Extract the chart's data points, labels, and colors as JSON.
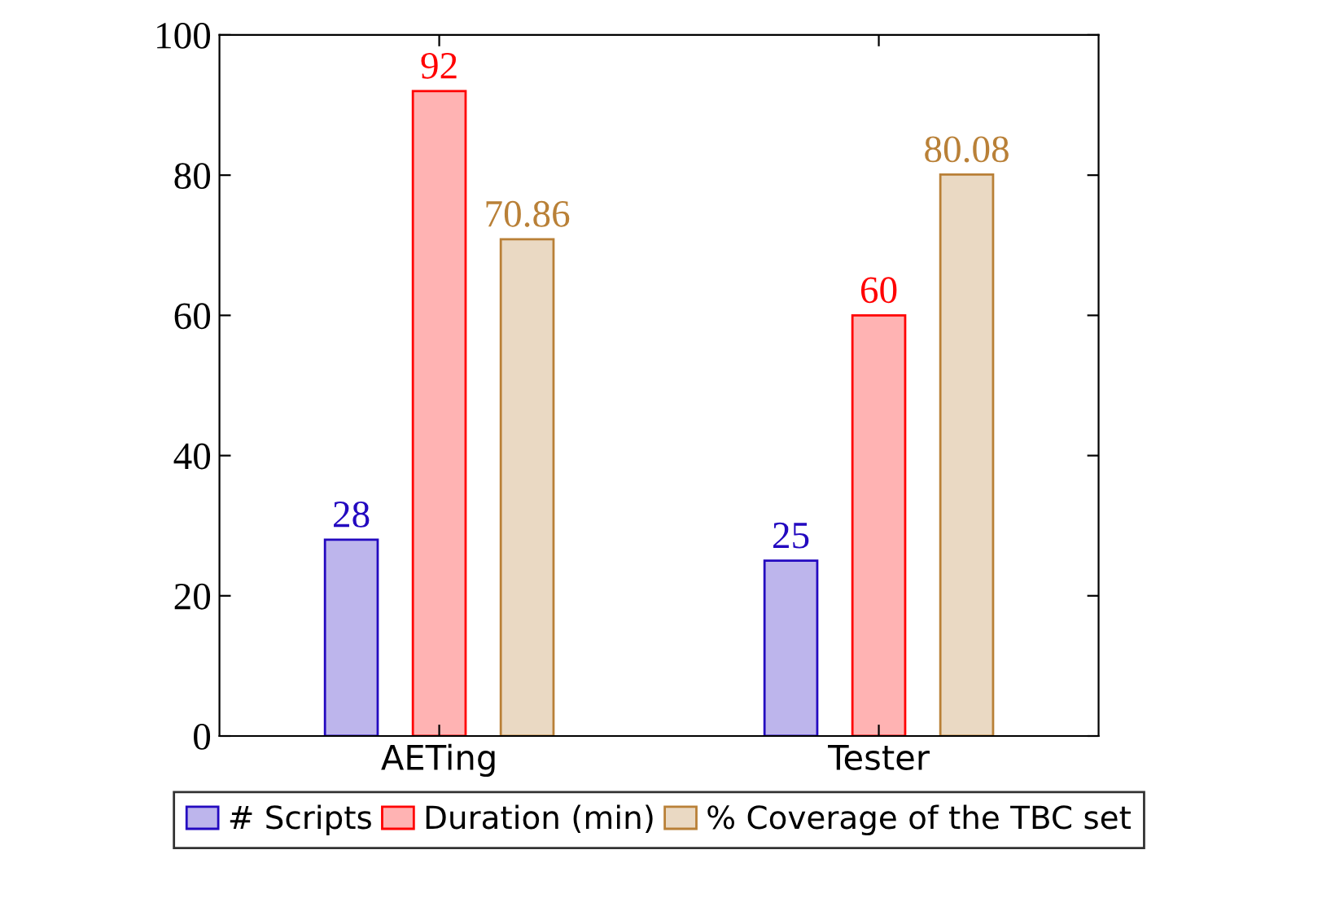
{
  "chart_data": {
    "type": "bar",
    "categories": [
      "AETing",
      "Tester"
    ],
    "series": [
      {
        "name": "# Scripts",
        "color": "#bdb5ec",
        "values": [
          28,
          25
        ]
      },
      {
        "name": "Duration (min)",
        "color": "#ffb3b3",
        "values": [
          92,
          60
        ]
      },
      {
        "name": "% Coverage of the TBC set",
        "color": "#ead9c3",
        "values": [
          70.86,
          80.08
        ]
      }
    ],
    "ylim": [
      0,
      100
    ],
    "yticks": [
      0,
      20,
      40,
      60,
      80,
      100
    ],
    "data_labels": true,
    "legend": "bottom",
    "grid": false
  }
}
